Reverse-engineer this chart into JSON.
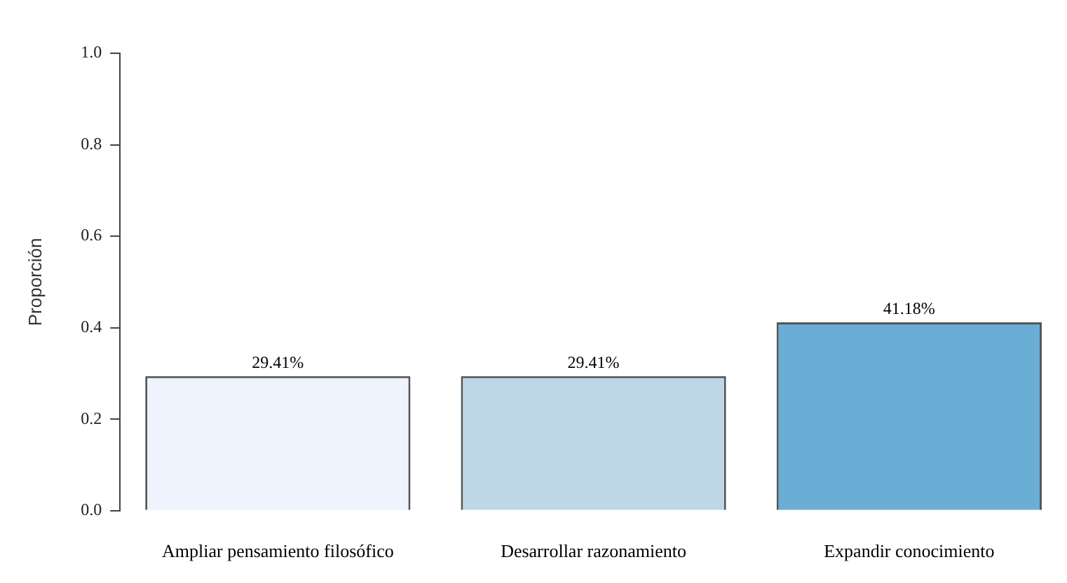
{
  "chart_data": {
    "type": "bar",
    "ylabel": "Proporción",
    "categories": [
      "Ampliar pensamiento filosófico",
      "Desarrollar razonamiento",
      "Expandir conocimiento"
    ],
    "values": [
      0.2941,
      0.2941,
      0.4118
    ],
    "colors": [
      "#eef3fd",
      "#bdd7e7",
      "#6aaed6"
    ],
    "value_labels": [
      "29.41%",
      "29.41%",
      "41.18%"
    ],
    "ylim": [
      0,
      1
    ],
    "yticks": [
      {
        "value": 0,
        "label": "0.0"
      },
      0.2,
      0.4,
      0.6,
      0.8,
      {
        "value": 1,
        "label": "1.0"
      }
    ],
    "grid": false,
    "legend": false
  }
}
